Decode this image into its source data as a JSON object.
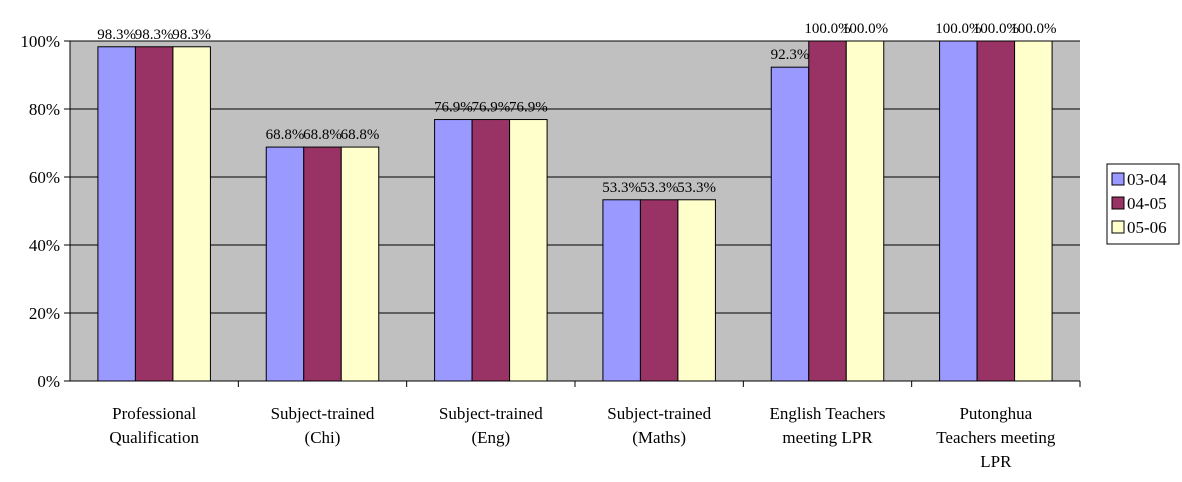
{
  "chart_data": {
    "type": "bar",
    "categories": [
      [
        "Professional",
        "Qualification"
      ],
      [
        "Subject-trained",
        "(Chi)"
      ],
      [
        "Subject-trained",
        "(Eng)"
      ],
      [
        "Subject-trained",
        "(Maths)"
      ],
      [
        "English Teachers",
        "meeting LPR"
      ],
      [
        "Putonghua",
        "Teachers meeting",
        "LPR"
      ]
    ],
    "series": [
      {
        "name": "03-04",
        "color": "#9999ff",
        "values": [
          98.3,
          68.8,
          76.9,
          53.3,
          92.3,
          100.0
        ],
        "labels": [
          "98.3%",
          "68.8%",
          "76.9%",
          "53.3%",
          "92.3%",
          "100.0%"
        ]
      },
      {
        "name": "04-05",
        "color": "#993366",
        "values": [
          98.3,
          68.8,
          76.9,
          53.3,
          100.0,
          100.0
        ],
        "labels": [
          "98.3%",
          "68.8%",
          "76.9%",
          "53.3%",
          "100.0%",
          "100.0%"
        ]
      },
      {
        "name": "05-06",
        "color": "#ffffcc",
        "values": [
          98.3,
          68.8,
          76.9,
          53.3,
          100.0,
          100.0
        ],
        "labels": [
          "98.3%",
          "68.8%",
          "76.9%",
          "53.3%",
          "100.0%",
          "100.0%"
        ]
      }
    ],
    "yticks": [
      "0%",
      "20%",
      "40%",
      "60%",
      "80%",
      "100%"
    ],
    "ylim": [
      0,
      100
    ],
    "grid": true,
    "plot_background": "#c0c0c0",
    "legend_position": "right"
  }
}
